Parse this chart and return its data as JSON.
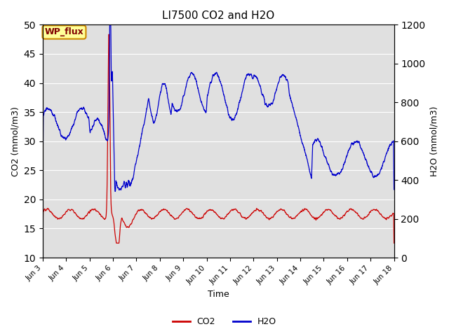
{
  "title": "LI7500 CO2 and H2O",
  "xlabel": "Time",
  "ylabel_left": "CO2 (mmol/m3)",
  "ylabel_right": "H2O (mmol/m3)",
  "ylim_left": [
    10,
    50
  ],
  "ylim_right": [
    0,
    1200
  ],
  "yticks_left": [
    10,
    15,
    20,
    25,
    30,
    35,
    40,
    45,
    50
  ],
  "yticks_right": [
    0,
    200,
    400,
    600,
    800,
    1000,
    1200
  ],
  "x_tick_labels": [
    "Jun 3",
    "Jun 4",
    "Jun 5",
    "Jun 6",
    "Jun 7",
    "Jun 8",
    "Jun 9",
    "Jun 10",
    "Jun 11",
    "Jun 12",
    "Jun 13",
    "Jun 14",
    "Jun 15",
    "Jun 16",
    "Jun 17",
    "Jun 18"
  ],
  "legend_label_co2": "CO2",
  "legend_label_h2o": "H2O",
  "color_co2": "#cc0000",
  "color_h2o": "#0000cc",
  "background_color": "#e0e0e0",
  "label_box_color": "#ffff99",
  "label_box_text": "WP_flux",
  "label_box_text_color": "#800000",
  "label_box_edge_color": "#cc8800",
  "figsize": [
    6.4,
    4.8
  ],
  "dpi": 100
}
